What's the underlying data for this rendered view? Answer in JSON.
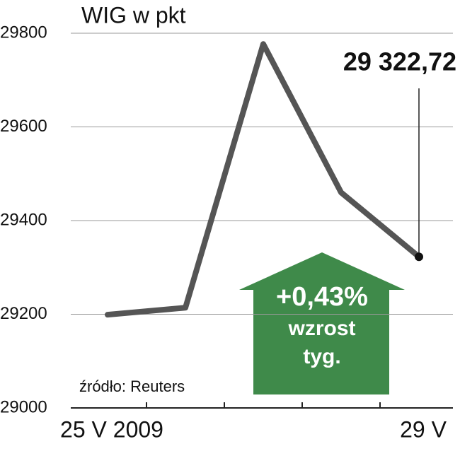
{
  "chart_data": {
    "type": "line",
    "title": "WIG w pkt",
    "categories": [
      "25 V 2009",
      null,
      null,
      null,
      "29 V"
    ],
    "series": [
      {
        "color": "#555555",
        "values": [
          29199,
          29214,
          29777,
          29460,
          29322.72
        ],
        "value_labels": [
          null,
          null,
          null,
          null,
          "29 322,72"
        ]
      }
    ],
    "ylim": [
      29000,
      29800
    ],
    "yticks": [
      29000,
      29200,
      29400,
      29600,
      29800
    ],
    "grid": true,
    "annotation": {
      "change": "+0,43%",
      "line1": "wzrost",
      "line2": "tyg.",
      "color": "#3f8a4a"
    },
    "source": "źródło: Reuters"
  }
}
